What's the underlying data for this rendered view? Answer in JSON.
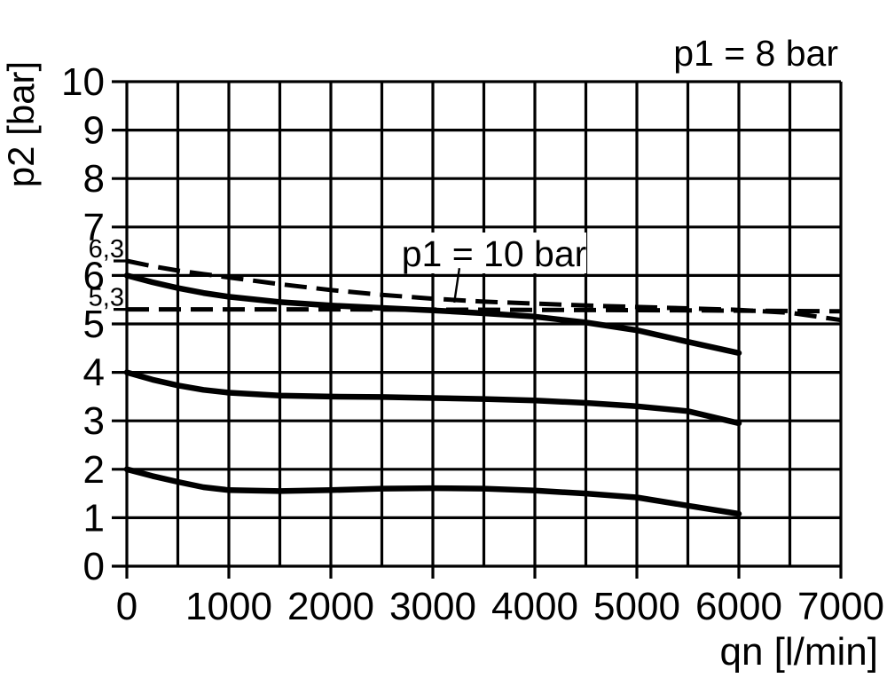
{
  "page": {
    "background_color": "#ffffff",
    "ink_color": "#000000"
  },
  "chart_data": {
    "type": "line",
    "title": "p1 = 8 bar",
    "xlabel": "qn [l/min]",
    "ylabel": "p2 [bar]",
    "xlim": [
      0,
      7000
    ],
    "ylim": [
      0,
      10
    ],
    "x_grid_step": 500,
    "y_grid_step": 1,
    "grid": "on",
    "legend": "none",
    "x_ticks": [
      {
        "value": 0,
        "label": "0"
      },
      {
        "value": 1000,
        "label": "1000"
      },
      {
        "value": 2000,
        "label": "2000"
      },
      {
        "value": 3000,
        "label": "3000"
      },
      {
        "value": 4000,
        "label": "4000"
      },
      {
        "value": 5000,
        "label": "5000"
      },
      {
        "value": 6000,
        "label": "6000"
      },
      {
        "value": 7000,
        "label": "7000"
      }
    ],
    "y_ticks": [
      {
        "value": 0,
        "label": "0"
      },
      {
        "value": 1,
        "label": "1"
      },
      {
        "value": 2,
        "label": "2"
      },
      {
        "value": 3,
        "label": "3"
      },
      {
        "value": 4,
        "label": "4"
      },
      {
        "value": 5,
        "label": "5"
      },
      {
        "value": 6,
        "label": "6"
      },
      {
        "value": 7,
        "label": "7"
      },
      {
        "value": 8,
        "label": "8"
      },
      {
        "value": 9,
        "label": "9"
      },
      {
        "value": 10,
        "label": "10"
      }
    ],
    "y_minor_ticks": [
      {
        "value": 6.3,
        "label": "6,3"
      },
      {
        "value": 5.3,
        "label": "5,3"
      }
    ],
    "annotation": {
      "label": "p1 = 10 bar",
      "label_x": 3600,
      "label_p2": 6.19,
      "leader_from": [
        3260,
        6.15
      ],
      "leader_to": [
        3210,
        5.44
      ]
    },
    "series": [
      {
        "id": "p1-8bar-setting-6bar",
        "style": "solid",
        "points": [
          [
            0,
            6.0
          ],
          [
            250,
            5.86
          ],
          [
            500,
            5.74
          ],
          [
            750,
            5.64
          ],
          [
            1000,
            5.56
          ],
          [
            1500,
            5.45
          ],
          [
            2000,
            5.38
          ],
          [
            2500,
            5.33
          ],
          [
            3000,
            5.28
          ],
          [
            3500,
            5.22
          ],
          [
            4000,
            5.15
          ],
          [
            4500,
            5.03
          ],
          [
            5000,
            4.87
          ],
          [
            5500,
            4.63
          ],
          [
            6000,
            4.4
          ]
        ]
      },
      {
        "id": "p1-8bar-setting-4bar",
        "style": "solid",
        "points": [
          [
            0,
            4.0
          ],
          [
            250,
            3.85
          ],
          [
            500,
            3.73
          ],
          [
            750,
            3.64
          ],
          [
            1000,
            3.58
          ],
          [
            1500,
            3.52
          ],
          [
            2000,
            3.5
          ],
          [
            2500,
            3.49
          ],
          [
            3000,
            3.47
          ],
          [
            3500,
            3.45
          ],
          [
            4000,
            3.42
          ],
          [
            4500,
            3.37
          ],
          [
            5000,
            3.3
          ],
          [
            5500,
            3.2
          ],
          [
            6000,
            2.95
          ]
        ]
      },
      {
        "id": "p1-8bar-setting-2bar",
        "style": "solid",
        "points": [
          [
            0,
            2.0
          ],
          [
            250,
            1.86
          ],
          [
            500,
            1.74
          ],
          [
            750,
            1.63
          ],
          [
            1000,
            1.57
          ],
          [
            1500,
            1.55
          ],
          [
            2000,
            1.57
          ],
          [
            2500,
            1.6
          ],
          [
            3000,
            1.61
          ],
          [
            3500,
            1.6
          ],
          [
            4000,
            1.56
          ],
          [
            4500,
            1.5
          ],
          [
            5000,
            1.42
          ],
          [
            5500,
            1.25
          ],
          [
            6000,
            1.08
          ]
        ]
      },
      {
        "id": "p1-10bar-dashed-upper",
        "style": "dashed",
        "points": [
          [
            0,
            6.3
          ],
          [
            250,
            6.19
          ],
          [
            500,
            6.1
          ],
          [
            750,
            6.03
          ],
          [
            1000,
            5.96
          ],
          [
            1500,
            5.82
          ],
          [
            2000,
            5.7
          ],
          [
            2500,
            5.6
          ],
          [
            3000,
            5.52
          ],
          [
            3500,
            5.46
          ],
          [
            4000,
            5.42
          ],
          [
            4500,
            5.38
          ],
          [
            5000,
            5.35
          ],
          [
            5500,
            5.32
          ],
          [
            6000,
            5.29
          ],
          [
            6500,
            5.23
          ],
          [
            7000,
            5.08
          ]
        ]
      },
      {
        "id": "p1-10bar-dashed-flat-5-3",
        "style": "dashed",
        "points": [
          [
            0,
            5.3
          ],
          [
            2000,
            5.3
          ],
          [
            4000,
            5.29
          ],
          [
            5500,
            5.28
          ],
          [
            7000,
            5.26
          ]
        ]
      }
    ]
  }
}
